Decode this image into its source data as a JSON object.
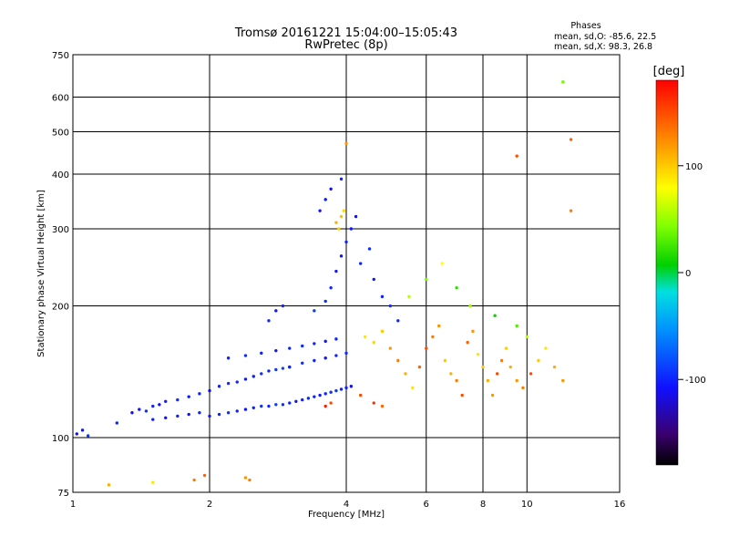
{
  "chart_data": {
    "type": "scatter",
    "title": "Tromsø 20161221 15:04:00–15:05:43",
    "subtitle": "RwPretec (8p)",
    "phase_stats": {
      "heading": "Phases",
      "line_o": "mean, sd,O: -85.6, 22.5",
      "line_x": "mean, sd,X:  98.3, 26.8"
    },
    "xlabel": "Frequency [MHz]",
    "ylabel": "Stationary phase Virtual Height [km]",
    "x_scale": "log",
    "y_scale": "log",
    "xlim": [
      1,
      16
    ],
    "ylim": [
      75,
      750
    ],
    "x_ticks": [
      1,
      2,
      4,
      6,
      8,
      10,
      16
    ],
    "x_tick_labels": [
      "1",
      "2",
      "4",
      "6",
      "8",
      "10",
      "16"
    ],
    "y_ticks": [
      75,
      100,
      200,
      300,
      400,
      500,
      600,
      750
    ],
    "y_tick_labels": [
      "75",
      "100",
      "200",
      "300",
      "400",
      "500",
      "600",
      "750"
    ],
    "grid": true,
    "colorbar": {
      "label": "[deg]",
      "range": [
        -180,
        180
      ],
      "ticks": [
        100,
        0,
        -100
      ],
      "tick_labels": [
        "100",
        "0",
        "-100"
      ]
    },
    "series": [
      {
        "points": [
          [
            1.02,
            102,
            -110
          ],
          [
            1.05,
            104,
            -105
          ],
          [
            1.08,
            101,
            -90
          ],
          [
            1.25,
            108,
            -100
          ],
          [
            1.35,
            114,
            -110
          ],
          [
            1.4,
            116,
            -105
          ],
          [
            1.45,
            115,
            -95
          ],
          [
            1.5,
            118,
            -100
          ],
          [
            1.55,
            119,
            -110
          ],
          [
            1.6,
            121,
            -100
          ],
          [
            1.7,
            122,
            -95
          ],
          [
            1.8,
            124,
            -105
          ],
          [
            1.9,
            126,
            -100
          ],
          [
            2.0,
            128,
            -110
          ],
          [
            2.1,
            131,
            -100
          ],
          [
            2.2,
            133,
            -95
          ],
          [
            2.3,
            134,
            -100
          ],
          [
            2.4,
            136,
            -105
          ],
          [
            2.5,
            138,
            -100
          ],
          [
            2.6,
            140,
            -95
          ],
          [
            2.7,
            142,
            -100
          ],
          [
            2.8,
            143,
            -90
          ],
          [
            2.9,
            144,
            -85
          ],
          [
            3.0,
            145,
            -80
          ],
          [
            1.5,
            110,
            -100
          ],
          [
            1.6,
            111,
            -105
          ],
          [
            1.7,
            112,
            -100
          ],
          [
            1.8,
            113,
            -110
          ],
          [
            1.9,
            114,
            -100
          ],
          [
            2.0,
            112,
            -105
          ],
          [
            2.1,
            113,
            -100
          ],
          [
            2.2,
            114,
            -95
          ],
          [
            2.3,
            115,
            -100
          ],
          [
            2.4,
            116,
            -105
          ],
          [
            2.5,
            117,
            -100
          ],
          [
            2.6,
            118,
            -95
          ],
          [
            2.7,
            118,
            -100
          ],
          [
            2.8,
            119,
            -90
          ],
          [
            2.9,
            119,
            -95
          ],
          [
            3.0,
            120,
            -100
          ],
          [
            3.1,
            121,
            -105
          ],
          [
            3.2,
            122,
            -100
          ],
          [
            3.3,
            123,
            -95
          ],
          [
            3.4,
            124,
            -100
          ],
          [
            3.5,
            125,
            -105
          ],
          [
            3.6,
            126,
            -100
          ],
          [
            3.7,
            127,
            -95
          ],
          [
            3.8,
            128,
            -90
          ],
          [
            3.9,
            129,
            -100
          ],
          [
            4.0,
            130,
            -100
          ],
          [
            4.1,
            131,
            -110
          ],
          [
            2.2,
            152,
            -100
          ],
          [
            2.4,
            154,
            -95
          ],
          [
            2.6,
            156,
            -100
          ],
          [
            2.8,
            158,
            -105
          ],
          [
            3.0,
            160,
            -100
          ],
          [
            3.2,
            162,
            -95
          ],
          [
            3.4,
            164,
            -100
          ],
          [
            3.6,
            166,
            -105
          ],
          [
            3.8,
            168,
            -100
          ],
          [
            3.0,
            145,
            -100
          ],
          [
            3.2,
            148,
            -95
          ],
          [
            3.4,
            150,
            -100
          ],
          [
            3.6,
            152,
            -105
          ],
          [
            3.8,
            154,
            -100
          ],
          [
            4.0,
            156,
            -95
          ],
          [
            3.4,
            195,
            -90
          ],
          [
            3.6,
            205,
            -95
          ],
          [
            3.7,
            220,
            -100
          ],
          [
            3.8,
            240,
            -105
          ],
          [
            3.9,
            260,
            -110
          ],
          [
            4.0,
            280,
            -100
          ],
          [
            4.1,
            300,
            -105
          ],
          [
            4.2,
            320,
            -110
          ],
          [
            3.5,
            330,
            -110
          ],
          [
            3.6,
            350,
            -105
          ],
          [
            3.7,
            370,
            -110
          ],
          [
            3.9,
            390,
            -100
          ],
          [
            4.3,
            250,
            -100
          ],
          [
            4.5,
            270,
            -95
          ],
          [
            4.6,
            230,
            -105
          ],
          [
            4.8,
            210,
            -100
          ],
          [
            5.0,
            200,
            -95
          ],
          [
            5.2,
            185,
            -100
          ],
          [
            2.7,
            185,
            -100
          ],
          [
            2.8,
            195,
            -105
          ],
          [
            2.9,
            200,
            -100
          ],
          [
            1.85,
            80,
            130
          ],
          [
            1.95,
            82,
            140
          ],
          [
            2.4,
            81,
            120
          ],
          [
            2.45,
            80,
            130
          ],
          [
            1.2,
            78,
            110
          ],
          [
            1.5,
            79,
            90
          ]
        ]
      },
      {
        "points": [
          [
            3.8,
            310,
            110
          ],
          [
            3.9,
            320,
            105
          ],
          [
            3.85,
            300,
            100
          ],
          [
            3.95,
            330,
            95
          ],
          [
            4.4,
            170,
            90
          ],
          [
            4.6,
            165,
            95
          ],
          [
            4.8,
            175,
            100
          ],
          [
            5.0,
            160,
            120
          ],
          [
            5.2,
            150,
            130
          ],
          [
            5.4,
            140,
            110
          ],
          [
            5.6,
            130,
            90
          ],
          [
            5.8,
            145,
            140
          ],
          [
            6.0,
            160,
            150
          ],
          [
            6.2,
            170,
            130
          ],
          [
            6.4,
            180,
            120
          ],
          [
            6.6,
            150,
            100
          ],
          [
            6.8,
            140,
            110
          ],
          [
            7.0,
            135,
            130
          ],
          [
            7.2,
            125,
            150
          ],
          [
            7.4,
            165,
            140
          ],
          [
            7.6,
            175,
            120
          ],
          [
            7.8,
            155,
            90
          ],
          [
            8.0,
            145,
            100
          ],
          [
            8.2,
            135,
            110
          ],
          [
            8.4,
            125,
            120
          ],
          [
            8.6,
            140,
            150
          ],
          [
            8.8,
            150,
            130
          ],
          [
            9.0,
            160,
            100
          ],
          [
            9.2,
            145,
            110
          ],
          [
            9.5,
            135,
            120
          ],
          [
            9.8,
            130,
            130
          ],
          [
            10.2,
            140,
            150
          ],
          [
            10.6,
            150,
            100
          ],
          [
            11.0,
            160,
            90
          ],
          [
            11.5,
            145,
            110
          ],
          [
            12.0,
            135,
            120
          ],
          [
            4.3,
            125,
            150
          ],
          [
            4.6,
            120,
            160
          ],
          [
            4.8,
            118,
            140
          ],
          [
            3.6,
            118,
            170
          ],
          [
            3.7,
            120,
            150
          ],
          [
            5.5,
            210,
            60
          ],
          [
            6.0,
            230,
            40
          ],
          [
            6.5,
            250,
            80
          ],
          [
            7.0,
            220,
            20
          ],
          [
            7.5,
            200,
            50
          ],
          [
            8.5,
            190,
            10
          ],
          [
            9.5,
            180,
            30
          ],
          [
            10.0,
            170,
            60
          ],
          [
            4.0,
            470,
            120
          ],
          [
            12.5,
            480,
            140
          ],
          [
            12.0,
            650,
            40
          ],
          [
            12.5,
            330,
            130
          ],
          [
            9.5,
            440,
            150
          ]
        ]
      }
    ]
  }
}
